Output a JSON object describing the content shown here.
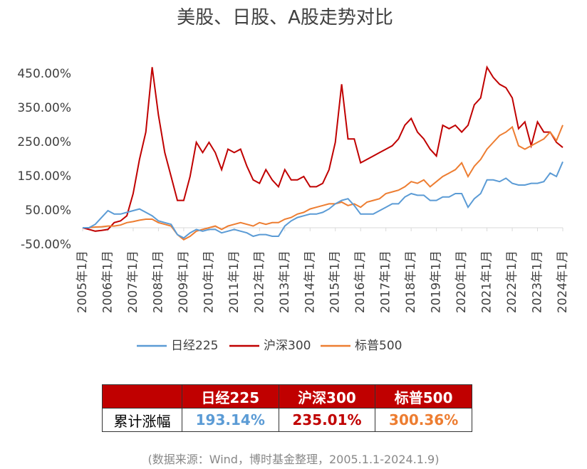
{
  "chart_data": {
    "type": "line",
    "title": "美股、日股、A股走势对比",
    "x": [
      "2005-01",
      "2005-04",
      "2005-07",
      "2005-10",
      "2006-01",
      "2006-04",
      "2006-07",
      "2006-10",
      "2007-01",
      "2007-04",
      "2007-07",
      "2007-10",
      "2008-01",
      "2008-04",
      "2008-07",
      "2008-10",
      "2009-01",
      "2009-04",
      "2009-07",
      "2009-10",
      "2010-01",
      "2010-04",
      "2010-07",
      "2010-10",
      "2011-01",
      "2011-04",
      "2011-07",
      "2011-10",
      "2012-01",
      "2012-04",
      "2012-07",
      "2012-10",
      "2013-01",
      "2013-04",
      "2013-07",
      "2013-10",
      "2014-01",
      "2014-04",
      "2014-07",
      "2014-10",
      "2015-01",
      "2015-04",
      "2015-07",
      "2015-10",
      "2016-01",
      "2016-04",
      "2016-07",
      "2016-10",
      "2017-01",
      "2017-04",
      "2017-07",
      "2017-10",
      "2018-01",
      "2018-04",
      "2018-07",
      "2018-10",
      "2019-01",
      "2019-04",
      "2019-07",
      "2019-10",
      "2020-01",
      "2020-04",
      "2020-07",
      "2020-10",
      "2021-01",
      "2021-04",
      "2021-07",
      "2021-10",
      "2022-01",
      "2022-04",
      "2022-07",
      "2022-10",
      "2023-01",
      "2023-04",
      "2023-07",
      "2023-10",
      "2024-01"
    ],
    "series": [
      {
        "name": "日经225",
        "color": "#5b9bd5",
        "values": [
          0,
          0,
          10,
          30,
          50,
          40,
          40,
          45,
          50,
          55,
          45,
          35,
          20,
          15,
          10,
          -20,
          -30,
          -15,
          -5,
          -10,
          -5,
          -5,
          -15,
          -10,
          -5,
          -10,
          -15,
          -25,
          -20,
          -20,
          -25,
          -25,
          5,
          20,
          30,
          35,
          40,
          40,
          45,
          55,
          70,
          80,
          85,
          65,
          40,
          40,
          40,
          50,
          60,
          70,
          70,
          90,
          100,
          95,
          95,
          80,
          80,
          90,
          90,
          100,
          100,
          60,
          85,
          100,
          140,
          140,
          135,
          145,
          130,
          125,
          125,
          130,
          130,
          135,
          160,
          150,
          193.14
        ]
      },
      {
        "name": "沪深300",
        "color": "#c00000",
        "values": [
          0,
          -5,
          -10,
          -8,
          -5,
          15,
          20,
          35,
          100,
          200,
          280,
          470,
          330,
          220,
          150,
          80,
          80,
          150,
          250,
          220,
          250,
          220,
          170,
          230,
          220,
          230,
          180,
          140,
          130,
          170,
          140,
          120,
          170,
          140,
          140,
          150,
          120,
          120,
          130,
          170,
          250,
          420,
          260,
          260,
          190,
          200,
          210,
          220,
          230,
          240,
          260,
          300,
          320,
          280,
          260,
          230,
          210,
          300,
          290,
          300,
          280,
          300,
          360,
          380,
          470,
          440,
          420,
          410,
          380,
          290,
          310,
          240,
          310,
          280,
          280,
          250,
          235.01
        ]
      },
      {
        "name": "标普500",
        "color": "#ed7d31",
        "values": [
          0,
          0,
          2,
          3,
          5,
          5,
          8,
          15,
          18,
          22,
          25,
          25,
          15,
          10,
          5,
          -20,
          -35,
          -25,
          -10,
          -5,
          0,
          5,
          -5,
          5,
          10,
          15,
          10,
          5,
          15,
          10,
          15,
          15,
          25,
          30,
          40,
          45,
          55,
          60,
          65,
          70,
          70,
          75,
          65,
          70,
          60,
          75,
          80,
          85,
          100,
          105,
          110,
          120,
          135,
          130,
          140,
          120,
          135,
          150,
          160,
          170,
          190,
          150,
          180,
          200,
          230,
          250,
          270,
          280,
          295,
          240,
          230,
          240,
          250,
          260,
          280,
          255,
          300.36
        ]
      }
    ],
    "xlim": [
      "2005-01",
      "2024-01"
    ],
    "xticks": [
      {
        "value": "2005-01",
        "label": "2005年1月"
      },
      {
        "value": "2006-01",
        "label": "2006年1月"
      },
      {
        "value": "2007-01",
        "label": "2007年1月"
      },
      {
        "value": "2008-01",
        "label": "2008年1月"
      },
      {
        "value": "2009-01",
        "label": "2009年1月"
      },
      {
        "value": "2010-01",
        "label": "2010年1月"
      },
      {
        "value": "2011-01",
        "label": "2011年1月"
      },
      {
        "value": "2012-01",
        "label": "2012年1月"
      },
      {
        "value": "2013-01",
        "label": "2013年1月"
      },
      {
        "value": "2014-01",
        "label": "2014年1月"
      },
      {
        "value": "2015-01",
        "label": "2015年1月"
      },
      {
        "value": "2016-01",
        "label": "2016年1月"
      },
      {
        "value": "2017-01",
        "label": "2017年1月"
      },
      {
        "value": "2018-01",
        "label": "2018年1月"
      },
      {
        "value": "2019-01",
        "label": "2019年1月"
      },
      {
        "value": "2020-01",
        "label": "2020年1月"
      },
      {
        "value": "2021-01",
        "label": "2021年1月"
      },
      {
        "value": "2022-01",
        "label": "2022年1月"
      },
      {
        "value": "2023-01",
        "label": "2023年1月"
      },
      {
        "value": "2024-01",
        "label": "2024年1月"
      }
    ],
    "ylim": [
      -50,
      500
    ],
    "yticks": [
      {
        "value": -50,
        "label": "-50.00%"
      },
      {
        "value": 50,
        "label": "50.00%"
      },
      {
        "value": 150,
        "label": "150.00%"
      },
      {
        "value": 250,
        "label": "250.00%"
      },
      {
        "value": 350,
        "label": "350.00%"
      },
      {
        "value": 450,
        "label": "450.00%"
      }
    ],
    "grid": false,
    "legend": "bottom"
  },
  "table": {
    "header": [
      "日经225",
      "沪深300",
      "标普500"
    ],
    "rows": [
      [
        "累计涨幅",
        "193.14%",
        "235.01%",
        "300.36%"
      ]
    ]
  },
  "source": "(数据来源：Wind，博时基金整理，2005.1.1-2024.1.9)"
}
